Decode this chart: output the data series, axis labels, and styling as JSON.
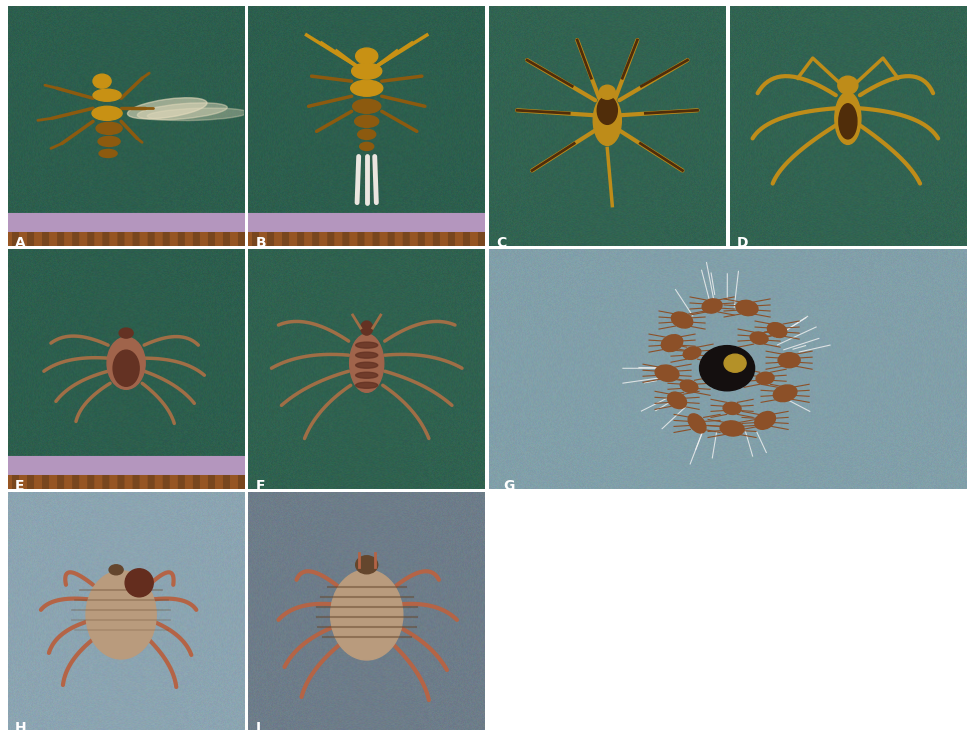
{
  "figure_width": 9.74,
  "figure_height": 7.36,
  "dpi": 100,
  "background_color": "#ffffff",
  "label_color": "#ffffff",
  "label_fontsize": 10,
  "label_fontweight": "bold",
  "panels": {
    "A": {
      "bg": [
        45,
        95,
        78
      ],
      "has_strip": true,
      "strip_brown": [
        120,
        70,
        30
      ],
      "strip_purple": [
        180,
        150,
        190
      ]
    },
    "B": {
      "bg": [
        45,
        95,
        78
      ],
      "has_strip": true,
      "strip_brown": [
        120,
        70,
        30
      ],
      "strip_purple": [
        180,
        150,
        190
      ]
    },
    "C": {
      "bg": [
        50,
        100,
        82
      ],
      "has_strip": false
    },
    "D": {
      "bg": [
        50,
        100,
        82
      ],
      "has_strip": false
    },
    "E": {
      "bg": [
        45,
        95,
        78
      ],
      "has_strip": true,
      "strip_brown": [
        120,
        70,
        30
      ],
      "strip_purple": [
        180,
        150,
        190
      ]
    },
    "F": {
      "bg": [
        48,
        98,
        80
      ],
      "has_strip": false
    },
    "G": {
      "bg": [
        130,
        160,
        170
      ],
      "has_strip": false
    },
    "H": {
      "bg": [
        140,
        165,
        178
      ],
      "has_strip": false
    },
    "I": {
      "bg": [
        110,
        125,
        138
      ],
      "has_strip": false
    }
  },
  "insect_colors": {
    "fly": [
      200,
      145,
      20
    ],
    "fly_dark": [
      140,
      90,
      15
    ],
    "fly_wing": [
      230,
      220,
      190
    ],
    "bat_fly_body": [
      190,
      140,
      30
    ],
    "stylidia_body": [
      190,
      140,
      25
    ],
    "stylidia_dark": [
      80,
      45,
      10
    ],
    "tick_body": [
      160,
      100,
      75
    ],
    "tick_dark": [
      100,
      50,
      35
    ],
    "tick_leg": [
      160,
      110,
      70
    ],
    "mite_body": [
      140,
      80,
      40
    ],
    "mite_dark": [
      20,
      15,
      15
    ],
    "mite_gold": [
      180,
      145,
      40
    ],
    "big_tick_body": [
      185,
      155,
      125
    ],
    "big_tick_border": [
      100,
      70,
      45
    ],
    "big_tick_scutum": [
      100,
      45,
      30
    ],
    "big_tick_leg": [
      180,
      100,
      70
    ]
  }
}
